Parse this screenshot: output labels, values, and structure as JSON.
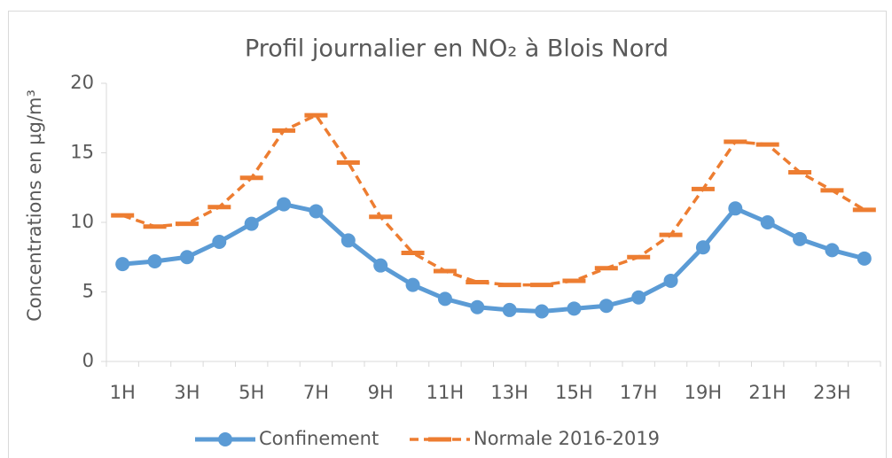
{
  "chart_data": {
    "type": "line",
    "title": "Profil journalier en NO₂ à Blois Nord",
    "y_label": "Concentrations en µg/m³",
    "categories": [
      "1H",
      null,
      "3H",
      null,
      "5H",
      null,
      "7H",
      null,
      "9H",
      null,
      "11H",
      null,
      "13H",
      null,
      "15H",
      null,
      "17H",
      null,
      "19H",
      null,
      "21H",
      null,
      "23H",
      null
    ],
    "series": [
      {
        "name": "Confinement",
        "color": "#5b9bd5",
        "style": "solid",
        "values": [
          7.0,
          7.2,
          7.5,
          8.6,
          9.9,
          11.3,
          10.8,
          8.7,
          6.9,
          5.5,
          4.5,
          3.9,
          3.7,
          3.6,
          3.8,
          4.0,
          4.6,
          5.8,
          8.2,
          11.0,
          10.0,
          8.8,
          8.0,
          7.4
        ]
      },
      {
        "name": "Normale 2016-2019",
        "color": "#ed7d31",
        "style": "dashed",
        "values": [
          10.5,
          9.7,
          9.9,
          11.1,
          13.2,
          16.6,
          17.7,
          14.3,
          10.4,
          7.8,
          6.5,
          5.7,
          5.5,
          5.5,
          5.8,
          6.7,
          7.5,
          9.1,
          12.4,
          15.8,
          15.6,
          13.6,
          12.3,
          10.9
        ]
      }
    ],
    "ylim": [
      0,
      20
    ],
    "yticks": [
      0,
      5,
      10,
      15,
      20
    ],
    "grid": false,
    "legend": "bottom"
  }
}
